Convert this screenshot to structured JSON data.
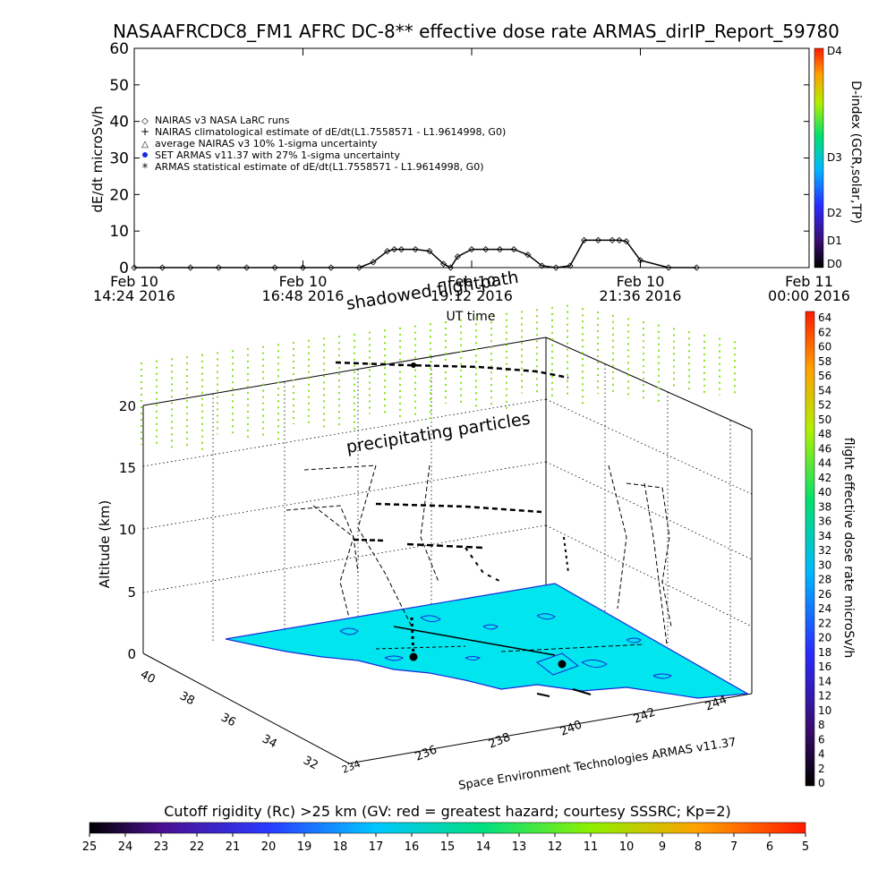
{
  "chart_data": [
    {
      "type": "line",
      "title": "NASAAFRCDC8_FM1 AFRC DC-8** effective dose rate ARMAS_dirIP_Report_59780",
      "ylabel": "dE/dt microSv/h",
      "xlabel": "UT time",
      "ylim": [
        0,
        60
      ],
      "yticks": [
        "0",
        "10",
        "20",
        "30",
        "40",
        "50",
        "60"
      ],
      "xticks": [
        {
          "date": "Feb 10",
          "time": "14:24 2016"
        },
        {
          "date": "Feb 10",
          "time": "16:48 2016"
        },
        {
          "date": "Feb 10",
          "time": "19:12 2016"
        },
        {
          "date": "Feb 10",
          "time": "21:36 2016"
        },
        {
          "date": "Feb 11",
          "time": "00:00 2016"
        }
      ],
      "legend": [
        {
          "symbol": "◇",
          "label": "NAIRAS v3 NASA LaRC runs"
        },
        {
          "symbol": "+",
          "label": "NAIRAS climatological estimate of dE/dt(L1.7558571 - L1.9614998, G0)"
        },
        {
          "symbol": "△",
          "label": "average NAIRAS v3 10% 1-sigma uncertainty"
        },
        {
          "symbol": "●",
          "label": "SET ARMAS v11.37 with 27% 1-sigma uncertainty"
        },
        {
          "symbol": "*",
          "label": "ARMAS statistical estimate of dE/dt(L1.7558571 - L1.9614998, G0)"
        }
      ],
      "legend_position": "left",
      "right_colorbar": {
        "label": "D-index (GCR,solar,TP)",
        "ticks": [
          "D4",
          "D3",
          "D2",
          "D1",
          "D0"
        ]
      },
      "series": [
        {
          "x": [
            "14:24",
            "14:48",
            "15:12",
            "15:36",
            "16:00",
            "16:24",
            "16:48",
            "17:12",
            "17:36",
            "17:48",
            "18:00",
            "18:06",
            "18:12",
            "18:24",
            "18:36",
            "18:48",
            "18:54",
            "19:00",
            "19:12",
            "19:24",
            "19:36",
            "19:48",
            "20:00",
            "20:12",
            "20:24",
            "20:36",
            "20:48",
            "21:00",
            "21:12",
            "21:18",
            "21:24",
            "21:36",
            "22:00",
            "22:24"
          ],
          "y": [
            0,
            0,
            0,
            0,
            0,
            0,
            0,
            0,
            0,
            1.5,
            4.5,
            5,
            5,
            5,
            4.5,
            1,
            0,
            3,
            5,
            5,
            5,
            5,
            3.5,
            0.5,
            0,
            0.5,
            7.5,
            7.5,
            7.5,
            7.5,
            7.2,
            2,
            0,
            0
          ]
        }
      ]
    },
    {
      "type": "scatter",
      "zlabel": "Altitude (km)",
      "zticks": [
        "0",
        "5",
        "10",
        "15",
        "20"
      ],
      "lat_ticks": [
        "40",
        "38",
        "36",
        "34",
        "32"
      ],
      "lon_ticks": [
        "234",
        "236",
        "238",
        "240",
        "242",
        "244"
      ],
      "annotations": [
        "shadowed flightpath",
        "precipitating particles"
      ],
      "credit": "Space Environment Technologies ARMAS v11.37",
      "right_colorbar": {
        "label": "flight effective dose rate microSv/h",
        "ticks": [
          "64",
          "62",
          "60",
          "58",
          "56",
          "54",
          "52",
          "50",
          "48",
          "46",
          "44",
          "42",
          "40",
          "38",
          "36",
          "34",
          "32",
          "30",
          "28",
          "26",
          "24",
          "22",
          "20",
          "18",
          "16",
          "14",
          "12",
          "10",
          "8",
          "6",
          "4",
          "2",
          "0"
        ]
      },
      "bottom_colorbar": {
        "label": "Cutoff rigidity (Rc) >25 km (GV: red = greatest hazard; courtesy SSSRC; Kp=2)",
        "ticks": [
          "25",
          "24",
          "23",
          "22",
          "21",
          "20",
          "19",
          "18",
          "17",
          "16",
          "15",
          "14",
          "13",
          "12",
          "11",
          "10",
          "9",
          "8",
          "7",
          "6",
          "5"
        ]
      },
      "colors": {
        "map_fill": "#00e5ee",
        "coast": "#1a2bd8",
        "particles": "#8ae21c",
        "track": "#000000"
      }
    }
  ]
}
